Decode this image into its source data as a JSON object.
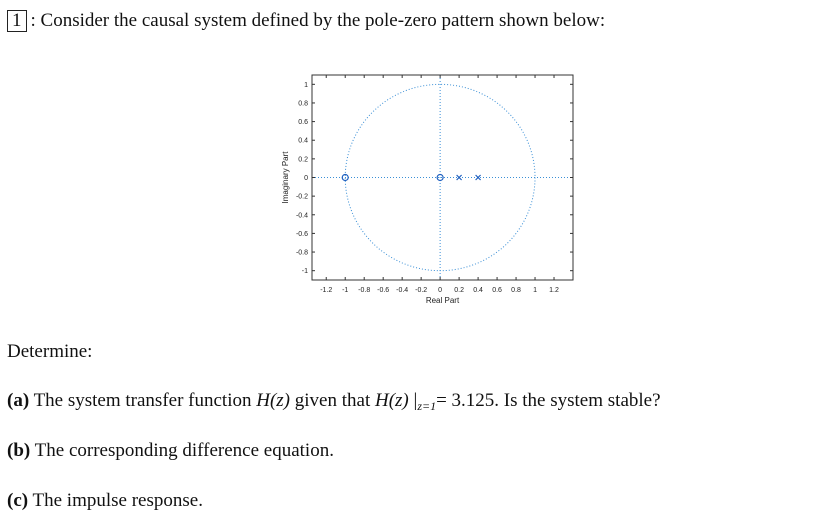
{
  "problem": {
    "number": "1",
    "statement": ": Consider the causal system defined by the pole-zero pattern shown below:"
  },
  "chart_data": {
    "type": "scatter",
    "title": "",
    "xlabel": "Real Part",
    "ylabel": "Imaginary Part",
    "xlim": [
      -1.35,
      1.4
    ],
    "ylim": [
      -1.1,
      1.1
    ],
    "xticks": [
      "-1.2",
      "-1",
      "-0.8",
      "-0.6",
      "-0.4",
      "-0.2",
      "0",
      "0.2",
      "0.4",
      "0.6",
      "0.8",
      "1",
      "1.2"
    ],
    "xtick_values": [
      -1.2,
      -1,
      -0.8,
      -0.6,
      -0.4,
      -0.2,
      0,
      0.2,
      0.4,
      0.6,
      0.8,
      1,
      1.2
    ],
    "yticks": [
      "1",
      "0.8",
      "0.6",
      "0.4",
      "0.2",
      "0",
      "-0.2",
      "-0.4",
      "-0.6",
      "-0.8",
      "-1"
    ],
    "ytick_values": [
      1,
      0.8,
      0.6,
      0.4,
      0.2,
      0,
      -0.2,
      -0.4,
      -0.6,
      -0.8,
      -1
    ],
    "unit_circle": true,
    "zeros": [
      {
        "re": -1,
        "im": 0
      },
      {
        "re": 0,
        "im": 0
      }
    ],
    "poles": [
      {
        "re": 0.2,
        "im": 0
      },
      {
        "re": 0.4,
        "im": 0
      }
    ],
    "colors": {
      "markers": "#1f5fbf",
      "axes": "#333333",
      "circle": "#3a8fd6"
    }
  },
  "determine": "Determine:",
  "parts": [
    {
      "label": "(a)",
      "text1": "The system transfer function ",
      "hz": "H(z)",
      "text2": " given that ",
      "hz2": "H(z)",
      "bar": " |",
      "sub": "z=1",
      "text3": "= 3.125. Is the system stable?"
    },
    {
      "label": "(b)",
      "text1": "The corresponding difference equation."
    },
    {
      "label": "(c)",
      "text1": "The impulse response."
    }
  ]
}
